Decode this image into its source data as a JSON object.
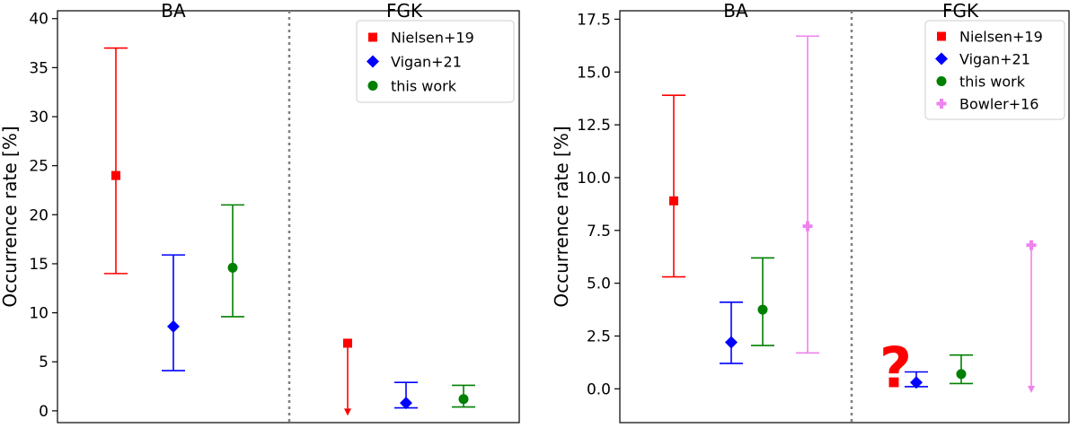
{
  "chart_data": [
    {
      "type": "scatter",
      "ylabel": "Occurrence rate [%]",
      "ylim": [
        -1.2,
        40.8
      ],
      "yticks": [
        0,
        5,
        10,
        15,
        20,
        25,
        30,
        35,
        40
      ],
      "ytick_labels": [
        "0",
        "5",
        "10",
        "15",
        "20",
        "25",
        "30",
        "35",
        "40"
      ],
      "groups": [
        "BA",
        "FGK"
      ],
      "divider": "dotted",
      "legend_position": "top-right",
      "series": [
        {
          "name": "Nielsen+19",
          "color": "#ff0000",
          "marker": "square",
          "points": [
            {
              "group": "BA",
              "y": 24.0,
              "lo": 14.0,
              "hi": 37.0,
              "upper_limit": false
            },
            {
              "group": "FGK",
              "y": 6.9,
              "lo": -0.5,
              "hi": 6.9,
              "upper_limit": true
            }
          ]
        },
        {
          "name": "Vigan+21",
          "color": "#0000ff",
          "marker": "diamond",
          "points": [
            {
              "group": "BA",
              "y": 8.6,
              "lo": 4.1,
              "hi": 15.9,
              "upper_limit": false
            },
            {
              "group": "FGK",
              "y": 0.8,
              "lo": 0.3,
              "hi": 2.9,
              "upper_limit": false
            }
          ]
        },
        {
          "name": "this work",
          "color": "#008000",
          "marker": "circle",
          "points": [
            {
              "group": "BA",
              "y": 14.6,
              "lo": 9.6,
              "hi": 21.0,
              "upper_limit": false
            },
            {
              "group": "FGK",
              "y": 1.2,
              "lo": 0.4,
              "hi": 2.6,
              "upper_limit": false
            }
          ]
        }
      ]
    },
    {
      "type": "scatter",
      "ylabel": "Occurrence rate [%]",
      "ylim": [
        -1.6,
        17.9
      ],
      "yticks": [
        0.0,
        2.5,
        5.0,
        7.5,
        10.0,
        12.5,
        15.0,
        17.5
      ],
      "ytick_labels": [
        "0.0",
        "2.5",
        "5.0",
        "7.5",
        "10.0",
        "12.5",
        "15.0",
        "17.5"
      ],
      "groups": [
        "BA",
        "FGK"
      ],
      "divider": "dotted",
      "legend_position": "top-right",
      "annotation": "?",
      "annotation_color": "#ff0000",
      "series": [
        {
          "name": "Nielsen+19",
          "color": "#ff0000",
          "marker": "square",
          "points": [
            {
              "group": "BA",
              "y": 8.9,
              "lo": 5.3,
              "hi": 13.9,
              "upper_limit": false
            }
          ]
        },
        {
          "name": "Vigan+21",
          "color": "#0000ff",
          "marker": "diamond",
          "points": [
            {
              "group": "BA",
              "y": 2.2,
              "lo": 1.2,
              "hi": 4.1,
              "upper_limit": false
            },
            {
              "group": "FGK",
              "y": 0.3,
              "lo": 0.1,
              "hi": 0.8,
              "upper_limit": false
            }
          ]
        },
        {
          "name": "this work",
          "color": "#008000",
          "marker": "circle",
          "points": [
            {
              "group": "BA",
              "y": 3.75,
              "lo": 2.05,
              "hi": 6.2,
              "upper_limit": false
            },
            {
              "group": "FGK",
              "y": 0.7,
              "lo": 0.25,
              "hi": 1.6,
              "upper_limit": false
            }
          ]
        },
        {
          "name": "Bowler+16",
          "color": "#ee82ee",
          "marker": "plus",
          "points": [
            {
              "group": "BA",
              "y": 7.7,
              "lo": 1.7,
              "hi": 16.7,
              "upper_limit": false
            },
            {
              "group": "FGK",
              "y": 6.8,
              "lo": -0.2,
              "hi": 6.8,
              "upper_limit": true
            }
          ]
        }
      ]
    }
  ]
}
